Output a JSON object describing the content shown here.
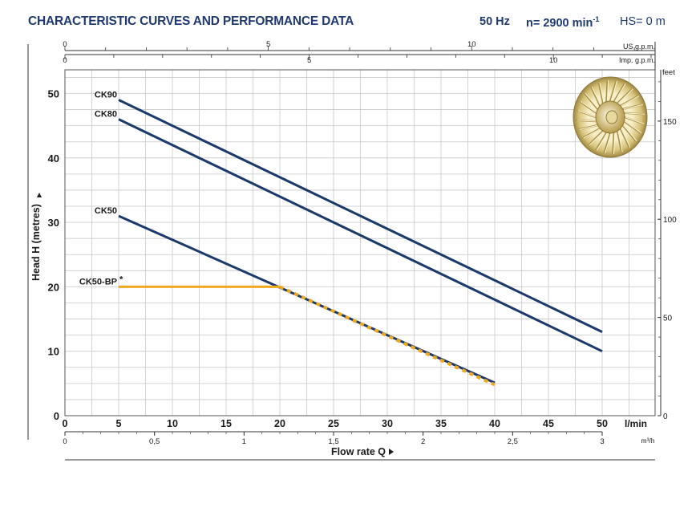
{
  "header": {
    "title": "CHARACTERISTIC CURVES AND PERFORMANCE DATA",
    "frequency": "50 Hz",
    "speed": "n= 2900 min",
    "speed_exp": "-1",
    "hs": "HS= 0 m"
  },
  "colors": {
    "curve": "#1b3a6b",
    "bp_curve": "#f0a820",
    "grid": "#c8c8c8",
    "axis_text": "#1a1a1a",
    "title": "#1f3a73"
  },
  "icons": {
    "impeller": "impeller-icon"
  },
  "chart_data": {
    "type": "line",
    "ylabel": "Head H (metres)",
    "xlabel": "Flow rate Q",
    "x_unit": "l/min",
    "x_unit_m3h": "m³/h",
    "x_unit_us": "US g.p.m.",
    "x_unit_imp": "Imp. g.p.m.",
    "y_unit_right": "feet",
    "xlim": [
      0,
      55
    ],
    "ylim": [
      0,
      55
    ],
    "grid": true,
    "x_ticks": [
      "0",
      "5",
      "10",
      "15",
      "20",
      "25",
      "30",
      "35",
      "40",
      "45",
      "50"
    ],
    "y_ticks": [
      "0",
      "10",
      "20",
      "30",
      "40",
      "50"
    ],
    "y_ticks_feet": [
      "0",
      "50",
      "100",
      "150"
    ],
    "m3h_ticks": [
      "0",
      "0,5",
      "1",
      "1,5",
      "2",
      "2,5",
      "3"
    ],
    "us_gpm_ticks": [
      "0",
      "5",
      "10"
    ],
    "imp_gpm_ticks": [
      "0",
      "5",
      "10"
    ],
    "series": [
      {
        "name": "CK90",
        "x": [
          5,
          50
        ],
        "y": [
          49,
          13
        ]
      },
      {
        "name": "CK80",
        "x": [
          5,
          50
        ],
        "y": [
          46,
          10
        ]
      },
      {
        "name": "CK50",
        "x": [
          5,
          40
        ],
        "y": [
          31,
          5.1
        ]
      },
      {
        "name": "CK50-BP",
        "marker": "*",
        "x": [
          5,
          20,
          40
        ],
        "y": [
          20,
          20,
          4.8
        ]
      }
    ]
  }
}
